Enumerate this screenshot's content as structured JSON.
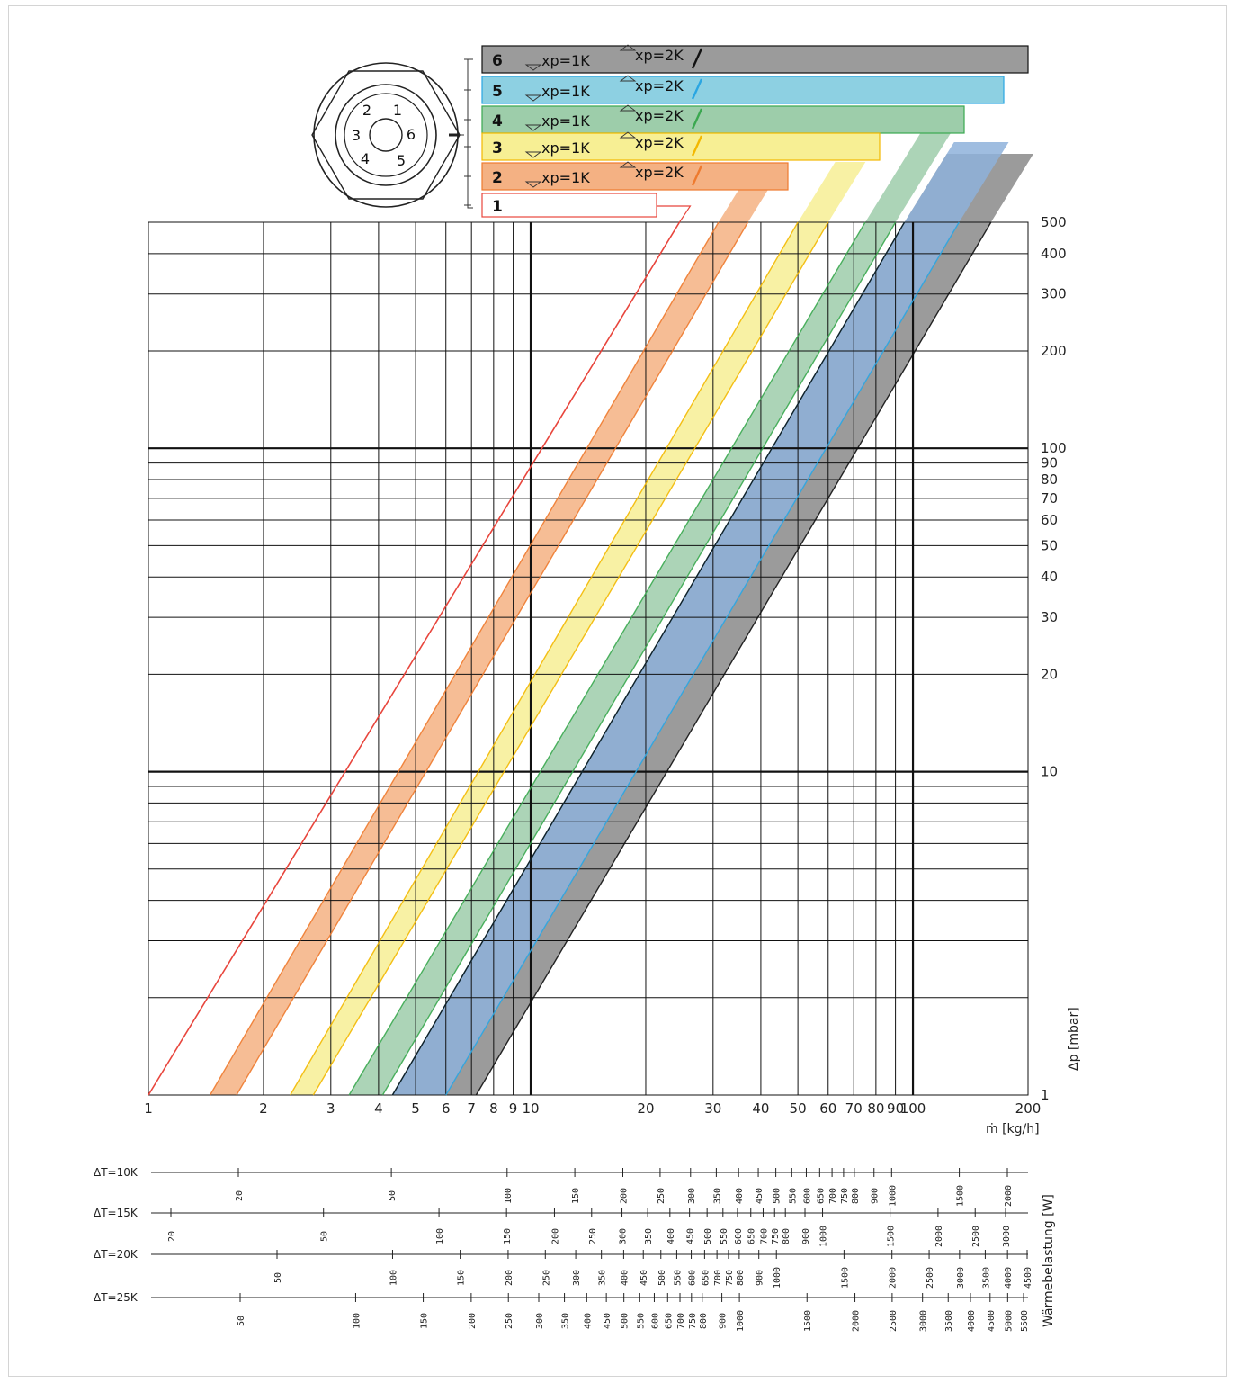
{
  "colors": {
    "setting_1": "#e8453c",
    "setting_2": "#f4b183",
    "setting_3": "#f7ef94",
    "setting_4": "#9dcdaa",
    "setting_5": "#8eb1da",
    "setting_6": "#9b9b9b",
    "setting_5_header": "#8dd0e2",
    "setting_5_line": "#2aa6e2",
    "setting_4_line": "#3aa84f",
    "setting_3_line": "#f3b800",
    "setting_2_line": "#ee7a2e",
    "setting_6_line": "#111111"
  },
  "chart_data": {
    "type": "line",
    "subtype": "log-log valve pressure-drop diagram with bands per presetting",
    "x_scale": "log",
    "y_scale": "log",
    "xlim": [
      1,
      200
    ],
    "ylim": [
      1,
      500
    ],
    "xlabel": "ṁ [kg/h]",
    "ylabel": "Δp [mbar]",
    "x_ticks": [
      1,
      2,
      3,
      4,
      5,
      6,
      7,
      8,
      9,
      10,
      20,
      30,
      40,
      50,
      60,
      70,
      80,
      90,
      100,
      200
    ],
    "x_tick_labels": [
      "1",
      "2",
      "3",
      "4",
      "5",
      "6",
      "7",
      "8",
      "9",
      "10",
      "20",
      "30",
      "40",
      "50",
      "60",
      "70",
      "80",
      "90",
      "100",
      "200"
    ],
    "y_ticks": [
      1,
      10,
      20,
      30,
      40,
      50,
      60,
      70,
      80,
      90,
      100,
      200,
      300,
      400,
      500
    ],
    "y_tick_labels": [
      "1",
      "10",
      "20",
      "30",
      "40",
      "50",
      "60",
      "70",
      "80",
      "90",
      "100",
      "200",
      "300",
      "400",
      "500"
    ],
    "grid": true,
    "legend": "top-right",
    "legend_xp1_label": "xp=1K",
    "legend_xp2_label": "xp=2K",
    "series": [
      {
        "name": "1",
        "points": [
          [
            1,
            1
          ],
          [
            24.5,
            500
          ]
        ]
      },
      {
        "name": "2",
        "band": true,
        "xp1K_points": [
          [
            1.7,
            1
          ],
          [
            37,
            500
          ]
        ],
        "xp2K_points": [
          [
            1.45,
            1
          ],
          [
            31,
            500
          ]
        ]
      },
      {
        "name": "3",
        "band": true,
        "xp1K_points": [
          [
            2.7,
            1
          ],
          [
            60,
            500
          ]
        ],
        "xp2K_points": [
          [
            2.35,
            1
          ],
          [
            50,
            500
          ]
        ]
      },
      {
        "name": "4",
        "band": true,
        "xp1K_points": [
          [
            4.1,
            1
          ],
          [
            90,
            500
          ]
        ],
        "xp2K_points": [
          [
            3.35,
            1
          ],
          [
            75,
            500
          ]
        ]
      },
      {
        "name": "5",
        "band": true,
        "xp1K_points": [
          [
            4.35,
            1
          ],
          [
            95,
            500
          ]
        ],
        "xp2K_points": [
          [
            6,
            1
          ],
          [
            132,
            500
          ]
        ]
      },
      {
        "name": "6",
        "band": true,
        "xp1K_points": [
          [
            4.35,
            1
          ],
          [
            95,
            500
          ]
        ],
        "xp2K_points": [
          [
            7.2,
            1
          ],
          [
            160,
            500
          ]
        ]
      }
    ]
  },
  "heat_load": {
    "title": "Wärmebelastung [W]",
    "scales": [
      {
        "label": "ΔT=10K",
        "labeled_values": [
          20,
          50,
          100,
          150,
          200,
          250,
          300,
          350,
          400,
          450,
          500,
          550,
          600,
          650,
          700,
          750,
          800,
          900,
          1000,
          1500,
          2000
        ]
      },
      {
        "label": "ΔT=15K",
        "labeled_values": [
          20,
          50,
          100,
          150,
          200,
          250,
          300,
          350,
          400,
          450,
          500,
          550,
          600,
          650,
          700,
          750,
          800,
          900,
          1000,
          1500,
          2000,
          2500,
          3000
        ]
      },
      {
        "label": "ΔT=20K",
        "labeled_values": [
          50,
          100,
          150,
          200,
          250,
          300,
          350,
          400,
          450,
          500,
          550,
          600,
          650,
          700,
          750,
          800,
          900,
          1000,
          1500,
          2000,
          2500,
          3000,
          3500,
          4000,
          4500
        ]
      },
      {
        "label": "ΔT=25K",
        "labeled_values": [
          50,
          100,
          150,
          200,
          250,
          300,
          350,
          400,
          450,
          500,
          550,
          600,
          650,
          700,
          750,
          800,
          900,
          1000,
          1500,
          2000,
          2500,
          3000,
          3500,
          4000,
          4500,
          5000,
          5500
        ]
      }
    ]
  },
  "valve_icon": "presetting-dial-icon",
  "dial_numbers": [
    "1",
    "2",
    "3",
    "4",
    "5",
    "6"
  ]
}
